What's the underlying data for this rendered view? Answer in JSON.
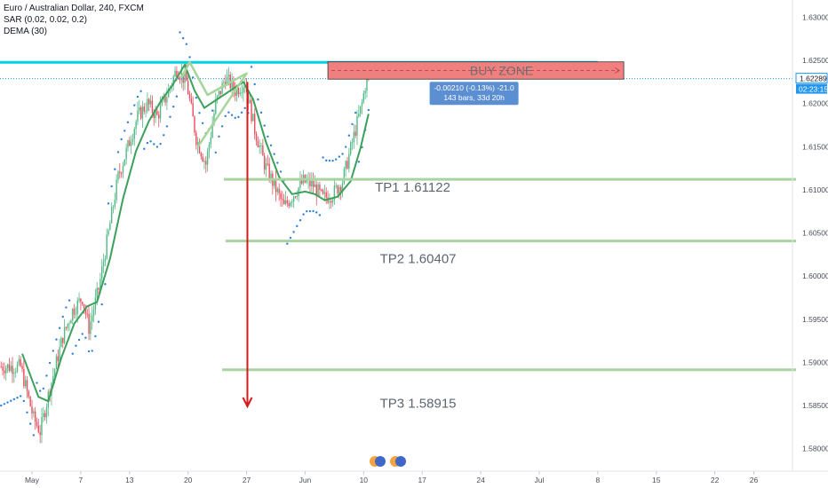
{
  "legend": {
    "title": "Euro / Australian Dollar, 240, FXCM",
    "sar": "SAR (0.02, 0.02, 0.2)",
    "dema": "DEMA (30)"
  },
  "price_axis": {
    "current_price": "1.62289",
    "countdown": "02:23:15"
  },
  "annotations": {
    "buy_zone": "BUY ZONE",
    "measure_line1": "-0.00210 (-0.13%) -21.0",
    "measure_line2": "143 bars, 33d 20h",
    "tp1": "TP1 1.61122",
    "tp2": "TP2 1.60407",
    "tp3": "TP3 1.58915"
  },
  "colors": {
    "up_candle": "#53b987",
    "down_candle": "#eb4d5c",
    "dema": "#3aa05a",
    "sar": "#2f7fd6",
    "resistance": "#00d2e6",
    "buy_zone_fill": "#f08080",
    "tp_line": "#a9d3a0",
    "arrow": "#d51b1b",
    "tooltip": "#5b8fd1",
    "price_badge": "#2196f3"
  },
  "chart_data": {
    "type": "candlestick",
    "symbol": "Euro / Australian Dollar",
    "timeframe": "240",
    "ylim": [
      1.5775,
      1.632
    ],
    "yticks": [
      1.58,
      1.585,
      1.59,
      1.595,
      1.6,
      1.605,
      1.61,
      1.615,
      1.62,
      1.625,
      1.63
    ],
    "ytick_labels": [
      "1.58000",
      "1.58500",
      "1.59000",
      "1.59500",
      "1.60000",
      "1.60500",
      "1.61000",
      "1.61500",
      "1.62000",
      "1.62500",
      "1.63000"
    ],
    "xticks": [
      {
        "label": "May",
        "bar": 0
      },
      {
        "label": "7",
        "bar": 30
      },
      {
        "label": "13",
        "bar": 60
      },
      {
        "label": "20",
        "bar": 96
      },
      {
        "label": "27",
        "bar": 132
      },
      {
        "label": "Jun",
        "bar": 168
      },
      {
        "label": "10",
        "bar": 204
      },
      {
        "label": "17",
        "bar": 240
      },
      {
        "label": "24",
        "bar": 276
      },
      {
        "label": "Jul",
        "bar": 312
      },
      {
        "label": "8",
        "bar": 348
      },
      {
        "label": "15",
        "bar": 384
      },
      {
        "label": "22",
        "bar": 420
      },
      {
        "label": "26",
        "bar": 444
      }
    ],
    "price_path": [
      [
        -6,
        1.5895
      ],
      [
        2,
        1.5835
      ],
      [
        6,
        1.582
      ],
      [
        12,
        1.587
      ],
      [
        20,
        1.593
      ],
      [
        26,
        1.596
      ],
      [
        32,
        1.5975
      ],
      [
        36,
        1.594
      ],
      [
        42,
        1.5985
      ],
      [
        48,
        1.605
      ],
      [
        54,
        1.6115
      ],
      [
        60,
        1.615
      ],
      [
        66,
        1.6185
      ],
      [
        72,
        1.62
      ],
      [
        78,
        1.6185
      ],
      [
        84,
        1.621
      ],
      [
        90,
        1.624
      ],
      [
        96,
        1.6225
      ],
      [
        102,
        1.616
      ],
      [
        108,
        1.613
      ],
      [
        114,
        1.62
      ],
      [
        120,
        1.623
      ],
      [
        126,
        1.6215
      ],
      [
        132,
        1.6225
      ],
      [
        138,
        1.617
      ],
      [
        144,
        1.613
      ],
      [
        150,
        1.6105
      ],
      [
        156,
        1.608
      ],
      [
        162,
        1.6095
      ],
      [
        168,
        1.611
      ],
      [
        174,
        1.6105
      ],
      [
        180,
        1.609
      ],
      [
        186,
        1.6095
      ],
      [
        192,
        1.611
      ],
      [
        196,
        1.614
      ],
      [
        200,
        1.617
      ],
      [
        204,
        1.62
      ],
      [
        207,
        1.6232
      ]
    ],
    "dema_path": [
      [
        -6,
        1.591
      ],
      [
        4,
        1.586
      ],
      [
        10,
        1.5855
      ],
      [
        18,
        1.5905
      ],
      [
        26,
        1.5945
      ],
      [
        34,
        1.5965
      ],
      [
        40,
        1.597
      ],
      [
        48,
        1.602
      ],
      [
        56,
        1.609
      ],
      [
        64,
        1.6145
      ],
      [
        72,
        1.618
      ],
      [
        80,
        1.6205
      ],
      [
        86,
        1.622
      ],
      [
        94,
        1.6245
      ],
      [
        100,
        1.6215
      ],
      [
        106,
        1.6195
      ],
      [
        114,
        1.6205
      ],
      [
        122,
        1.6215
      ],
      [
        130,
        1.6225
      ],
      [
        136,
        1.6205
      ],
      [
        144,
        1.6155
      ],
      [
        152,
        1.6115
      ],
      [
        160,
        1.6095
      ],
      [
        168,
        1.6098
      ],
      [
        174,
        1.6095
      ],
      [
        180,
        1.6088
      ],
      [
        188,
        1.6092
      ],
      [
        196,
        1.611
      ],
      [
        202,
        1.6148
      ],
      [
        207,
        1.6188
      ]
    ],
    "resistance_level": 1.62478,
    "buy_zone": {
      "from_bar": 182,
      "to_bar": 364,
      "low": 1.62298,
      "high": 1.62478
    },
    "take_profits": [
      {
        "label": "TP1",
        "price": 1.61122
      },
      {
        "label": "TP2",
        "price": 1.60407
      },
      {
        "label": "TP3",
        "price": 1.58915
      }
    ],
    "measure": {
      "change": -0.0021,
      "change_pct": -0.13,
      "pips": -21.0,
      "bars": 143,
      "duration": "33d 20h"
    },
    "current_price": 1.62289,
    "grid": false
  }
}
